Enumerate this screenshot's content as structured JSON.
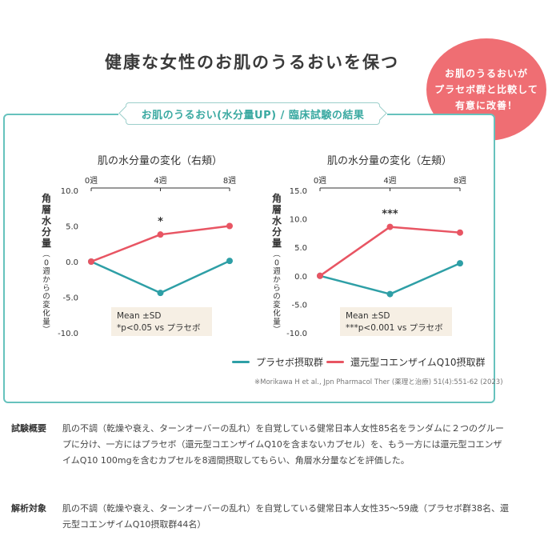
{
  "title": "健康な女性のお肌のうるおいを保つ",
  "bubble": {
    "lines": [
      "お肌のうるおいが",
      "プラセボ群と比較して",
      "有意に改善！"
    ],
    "color": "#ef6e73"
  },
  "panel": {
    "heading": "お肌のうるおい(水分量UP) / 臨床試験の結果",
    "border_color": "#66c2bd"
  },
  "chart_data": [
    {
      "type": "line",
      "title": "肌の水分量の変化（右頬）",
      "ylabel": "角層水分量（0週からの変化量）",
      "categories": [
        "0週",
        "4週",
        "8週"
      ],
      "ylim": [
        -10.0,
        10.0
      ],
      "yticks": [
        10.0,
        5.0,
        0.0,
        -5.0,
        -10.0
      ],
      "ytick_labels": [
        "10.0",
        "5.0",
        "0.0",
        "-5.0",
        "-10.0"
      ],
      "series": [
        {
          "name": "プラセボ摂取群",
          "color": "#2e9fa6",
          "values": [
            0.0,
            -4.4,
            0.1
          ]
        },
        {
          "name": "還元型コエンザイムQ10摂取群",
          "color": "#e85563",
          "values": [
            0.0,
            3.8,
            5.0
          ]
        }
      ],
      "annotations": [
        {
          "category": "4週",
          "text": "*"
        }
      ],
      "stats_box": [
        "Mean ±SD",
        "*p<0.05 vs プラセボ"
      ]
    },
    {
      "type": "line",
      "title": "肌の水分量の変化（左頬）",
      "ylabel": "角層水分量（0週からの変化量）",
      "categories": [
        "0週",
        "4週",
        "8週"
      ],
      "ylim": [
        -10.0,
        15.0
      ],
      "yticks": [
        15.0,
        10.0,
        5.0,
        0.0,
        -5.0,
        -10.0
      ],
      "ytick_labels": [
        "15.0",
        "10.0",
        "5.0",
        "0.0",
        "-5.0",
        "-10.0"
      ],
      "series": [
        {
          "name": "プラセボ摂取群",
          "color": "#2e9fa6",
          "values": [
            0.0,
            -3.2,
            2.2
          ]
        },
        {
          "name": "還元型コエンザイムQ10摂取群",
          "color": "#e85563",
          "values": [
            0.0,
            8.6,
            7.6
          ]
        }
      ],
      "annotations": [
        {
          "category": "4週",
          "text": "***"
        }
      ],
      "stats_box": [
        "Mean ±SD",
        "***p<0.001 vs プラセボ"
      ]
    }
  ],
  "legend": {
    "placebo": "プラセボ摂取群",
    "q10": "還元型コエンザイムQ10摂取群"
  },
  "citation": "※Morikawa H et al., Jpn Pharmacol Ther (薬理と治療) 51(4):551-62 (2023)",
  "notes": [
    {
      "label": "試験概要",
      "text": "肌の不調（乾燥や衰え、ターンオーバーの乱れ）を自覚している健常日本人女性85名をランダムに２つのグループに分け、一方にはプラセボ（還元型コエンザイムQ10を含まないカプセル）を、もう一方には還元型コエンザイムQ10 100mgを含むカプセルを8週間摂取してもらい、角層水分量などを評価した。"
    },
    {
      "label": "解析対象",
      "text": "肌の不調（乾燥や衰え、ターンオーバーの乱れ）を自覚している健常日本人女性35～59歳（プラセボ群38名、還元型コエンザイムQ10摂取群44名）"
    }
  ]
}
